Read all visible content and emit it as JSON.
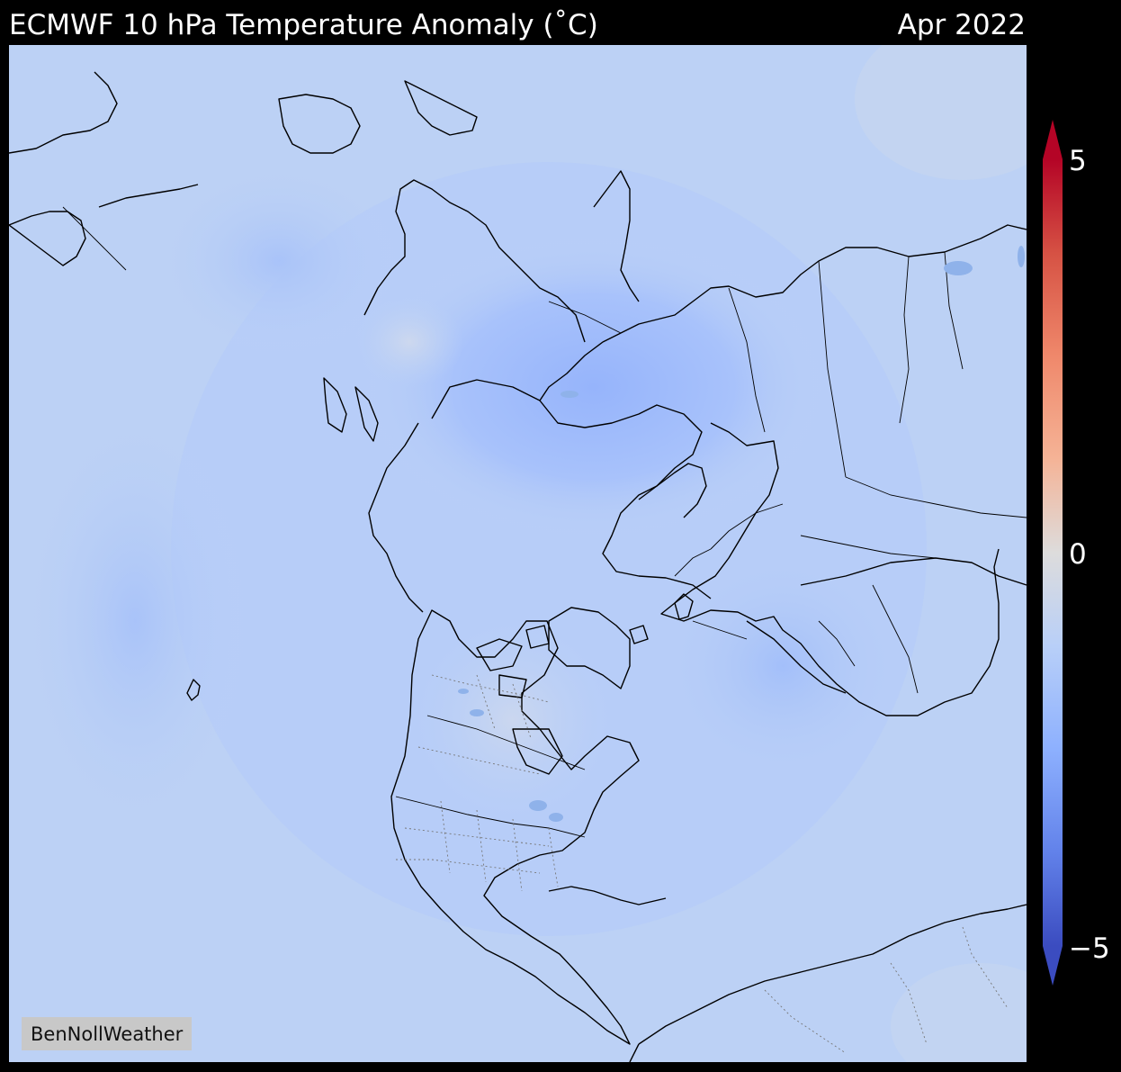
{
  "header": {
    "title": "ECMWF 10 hPa Temperature Anomaly (˚C)",
    "date": "Apr 2022"
  },
  "map": {
    "watermark": "BenNollWeather",
    "projection": "north-polar-stereographic",
    "land_outline_color": "#000000",
    "field_base_color": "#bcd1f5"
  },
  "colorbar": {
    "colormap": "coolwarm",
    "min": -5,
    "max": 5,
    "ticks": [
      {
        "value": 5,
        "label": "5"
      },
      {
        "value": 0,
        "label": "0"
      },
      {
        "value": -5,
        "label": "−5"
      }
    ],
    "extend": "both",
    "color_low": "#3b4cc0",
    "color_mid": "#dddcdc",
    "color_high": "#b40426"
  }
}
